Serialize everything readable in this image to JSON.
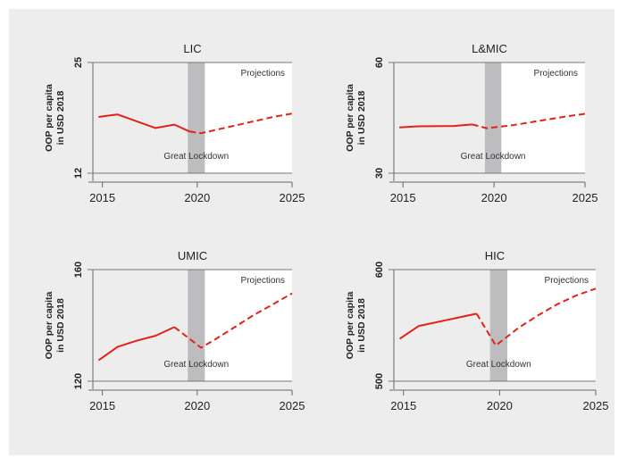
{
  "colors": {
    "background": "#ededed",
    "series": "#e32219",
    "lockdown_band": "#bdbdbf",
    "projection_area": "#ffffff"
  },
  "chart_data": [
    {
      "type": "line",
      "title": "LIC",
      "ylabel_line1": "OOP per capita",
      "ylabel_line2": "in USD 2018",
      "xlim": [
        2014.5,
        2025
      ],
      "ylim": [
        12,
        25
      ],
      "xticks": [
        "2015",
        "2020",
        "2025"
      ],
      "yticks": [
        "12",
        "25"
      ],
      "lockdown_band": [
        2019.5,
        2020.4
      ],
      "projection_start": 2020.4,
      "band_label": "Great Lockdown",
      "projection_label": "Projections",
      "actual": {
        "x": [
          2014.8,
          2015.8,
          2017.8,
          2018.8,
          2019.6
        ],
        "y": [
          18.6,
          18.9,
          17.3,
          17.7,
          16.9
        ]
      },
      "projected": {
        "x": [
          2019.6,
          2020.2,
          2021,
          2022,
          2023,
          2024,
          2025
        ],
        "y": [
          16.9,
          16.7,
          17.1,
          17.6,
          18.1,
          18.6,
          19.0
        ]
      }
    },
    {
      "type": "line",
      "title": "L&MIC",
      "ylabel_line1": "OOP per capita",
      "ylabel_line2": "in USD 2018",
      "xlim": [
        2014.5,
        2025
      ],
      "ylim": [
        30,
        60
      ],
      "xticks": [
        "2015",
        "2020",
        "2025"
      ],
      "yticks": [
        "30",
        "60"
      ],
      "lockdown_band": [
        2019.5,
        2020.4
      ],
      "projection_start": 2020.4,
      "band_label": "Great Lockdown",
      "projection_label": "Projections",
      "actual": {
        "x": [
          2014.8,
          2015.8,
          2017.8,
          2018.8
        ],
        "y": [
          42.4,
          42.7,
          42.8,
          43.2
        ]
      },
      "projected": {
        "x": [
          2018.8,
          2019.6,
          2021,
          2022,
          2023,
          2024,
          2025
        ],
        "y": [
          43.2,
          42.2,
          43.0,
          43.8,
          44.6,
          45.4,
          46.1
        ]
      }
    },
    {
      "type": "line",
      "title": "UMIC",
      "ylabel_line1": "OOP per capita",
      "ylabel_line2": "in USD 2018",
      "xlim": [
        2014.5,
        2025
      ],
      "ylim": [
        120,
        160
      ],
      "xticks": [
        "2015",
        "2020",
        "2025"
      ],
      "yticks": [
        "120",
        "160"
      ],
      "lockdown_band": [
        2019.5,
        2020.4
      ],
      "projection_start": 2020.4,
      "band_label": "Great Lockdown",
      "projection_label": "Projections",
      "actual": {
        "x": [
          2014.8,
          2015.8,
          2016.8,
          2017.8,
          2018.8
        ],
        "y": [
          127.5,
          132.3,
          134.5,
          136.3,
          139.4
        ]
      },
      "projected": {
        "x": [
          2018.8,
          2020.2,
          2021,
          2022,
          2023,
          2024,
          2025
        ],
        "y": [
          139.4,
          132.0,
          135.2,
          139.5,
          143.8,
          147.6,
          151.5
        ]
      }
    },
    {
      "type": "line",
      "title": "HIC",
      "ylabel_line1": "OOP per capita",
      "ylabel_line2": "in USD 2018",
      "xlim": [
        2014.5,
        2025
      ],
      "ylim": [
        500,
        600
      ],
      "xticks": [
        "2015",
        "2020",
        "2025"
      ],
      "yticks": [
        "500",
        "600"
      ],
      "lockdown_band": [
        2019.5,
        2020.4
      ],
      "projection_start": 2020.4,
      "band_label": "Great Lockdown",
      "projection_label": "Projections",
      "actual": {
        "x": [
          2014.8,
          2015.8,
          2018.8
        ],
        "y": [
          538,
          549.5,
          560.5
        ]
      },
      "projected": {
        "x": [
          2018.8,
          2019.8,
          2021,
          2022,
          2023,
          2024,
          2025
        ],
        "y": [
          560.5,
          532,
          548,
          559,
          569,
          577,
          583
        ]
      }
    }
  ]
}
